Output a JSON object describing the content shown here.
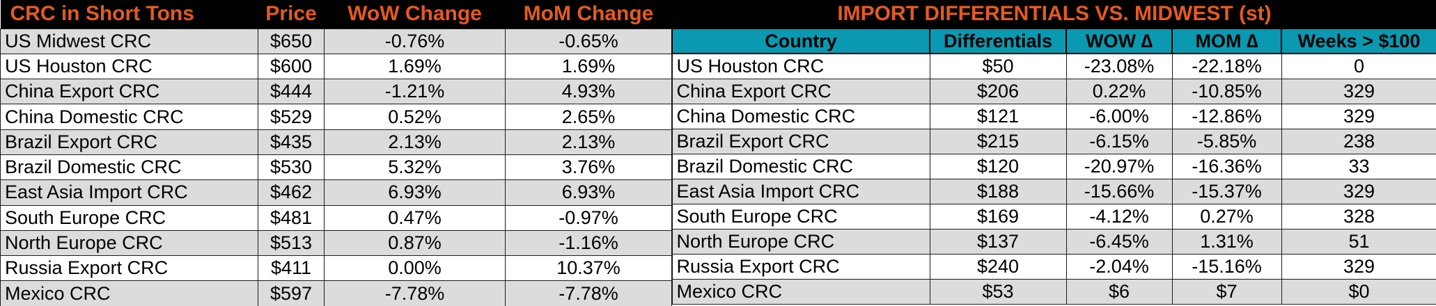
{
  "crc_table": {
    "headers": [
      "CRC in Short Tons",
      "Price",
      "WoW Change",
      "MoM Change"
    ],
    "rows": [
      [
        "US Midwest CRC",
        "$650",
        "-0.76%",
        "-0.65%"
      ],
      [
        "US Houston CRC",
        "$600",
        "1.69%",
        "1.69%"
      ],
      [
        "China Export CRC",
        "$444",
        "-1.21%",
        "4.93%"
      ],
      [
        "China Domestic CRC",
        "$529",
        "0.52%",
        "2.65%"
      ],
      [
        "Brazil Export CRC",
        "$435",
        "2.13%",
        "2.13%"
      ],
      [
        "Brazil Domestic CRC",
        "$530",
        "5.32%",
        "3.76%"
      ],
      [
        "East Asia Import CRC",
        "$462",
        "6.93%",
        "6.93%"
      ],
      [
        "South Europe CRC",
        "$481",
        "0.47%",
        "-0.97%"
      ],
      [
        "North Europe CRC",
        "$513",
        "0.87%",
        "-1.16%"
      ],
      [
        "Russia Export CRC",
        "$411",
        "0.00%",
        "10.37%"
      ],
      [
        "Mexico CRC",
        "$597",
        "-7.78%",
        "-7.78%"
      ]
    ]
  },
  "import_table": {
    "title": "IMPORT DIFFERENTIALS VS. MIDWEST (st)",
    "headers": [
      "Country",
      "Differentials",
      "WOW ∆",
      "MOM ∆",
      "Weeks > $100"
    ],
    "rows": [
      [
        "US Houston CRC",
        "$50",
        "-23.08%",
        "-22.18%",
        "0"
      ],
      [
        "China Export CRC",
        "$206",
        "0.22%",
        "-10.85%",
        "329"
      ],
      [
        "China Domestic CRC",
        "$121",
        "-6.00%",
        "-12.86%",
        "329"
      ],
      [
        "Brazil Export CRC",
        "$215",
        "-6.15%",
        "-5.85%",
        "238"
      ],
      [
        "Brazil Domestic CRC",
        "$120",
        "-20.97%",
        "-16.36%",
        "33"
      ],
      [
        "East Asia Import CRC",
        "$188",
        "-15.66%",
        "-15.37%",
        "329"
      ],
      [
        "South Europe CRC",
        "$169",
        "-4.12%",
        "0.27%",
        "328"
      ],
      [
        "North Europe CRC",
        "$137",
        "-6.45%",
        "1.31%",
        "51"
      ],
      [
        "Russia Export CRC",
        "$240",
        "-2.04%",
        "-15.16%",
        "329"
      ],
      [
        "Mexico CRC",
        "$53",
        "$6",
        "$7",
        "$0"
      ]
    ]
  },
  "colors": {
    "header_background": "#000000",
    "header_text": "#e55a1e",
    "subheader_background": "#0a99b0",
    "alt_row": "#dcdcdc"
  }
}
